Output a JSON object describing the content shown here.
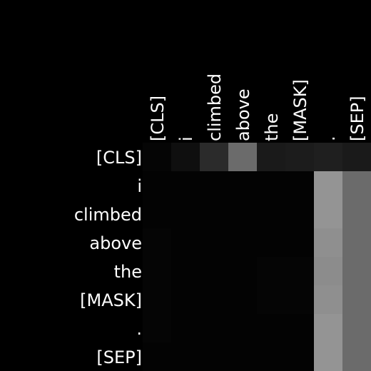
{
  "chart_data": {
    "type": "heatmap",
    "title": "",
    "xlabel": "",
    "ylabel": "",
    "colormap": "grayscale",
    "background": "#000000",
    "label_color": "#ffffff",
    "x_tokens": [
      "[CLS]",
      "i",
      "climbed",
      "above",
      "the",
      "[MASK]",
      ".",
      "[SEP]"
    ],
    "y_tokens": [
      "[CLS]",
      "i",
      "climbed",
      "above",
      "the",
      "[MASK]",
      ".",
      "[SEP]"
    ],
    "values": [
      [
        0.02,
        0.06,
        0.17,
        0.42,
        0.1,
        0.11,
        0.12,
        0.1
      ],
      [
        0.01,
        0.01,
        0.01,
        0.01,
        0.01,
        0.01,
        0.58,
        0.42
      ],
      [
        0.01,
        0.01,
        0.01,
        0.01,
        0.01,
        0.01,
        0.58,
        0.42
      ],
      [
        0.02,
        0.01,
        0.01,
        0.01,
        0.01,
        0.01,
        0.56,
        0.42
      ],
      [
        0.02,
        0.01,
        0.01,
        0.01,
        0.02,
        0.02,
        0.55,
        0.42
      ],
      [
        0.02,
        0.01,
        0.01,
        0.01,
        0.02,
        0.02,
        0.56,
        0.42
      ],
      [
        0.02,
        0.01,
        0.01,
        0.01,
        0.01,
        0.01,
        0.58,
        0.42
      ],
      [
        0.01,
        0.01,
        0.01,
        0.01,
        0.01,
        0.01,
        0.58,
        0.42
      ]
    ]
  }
}
